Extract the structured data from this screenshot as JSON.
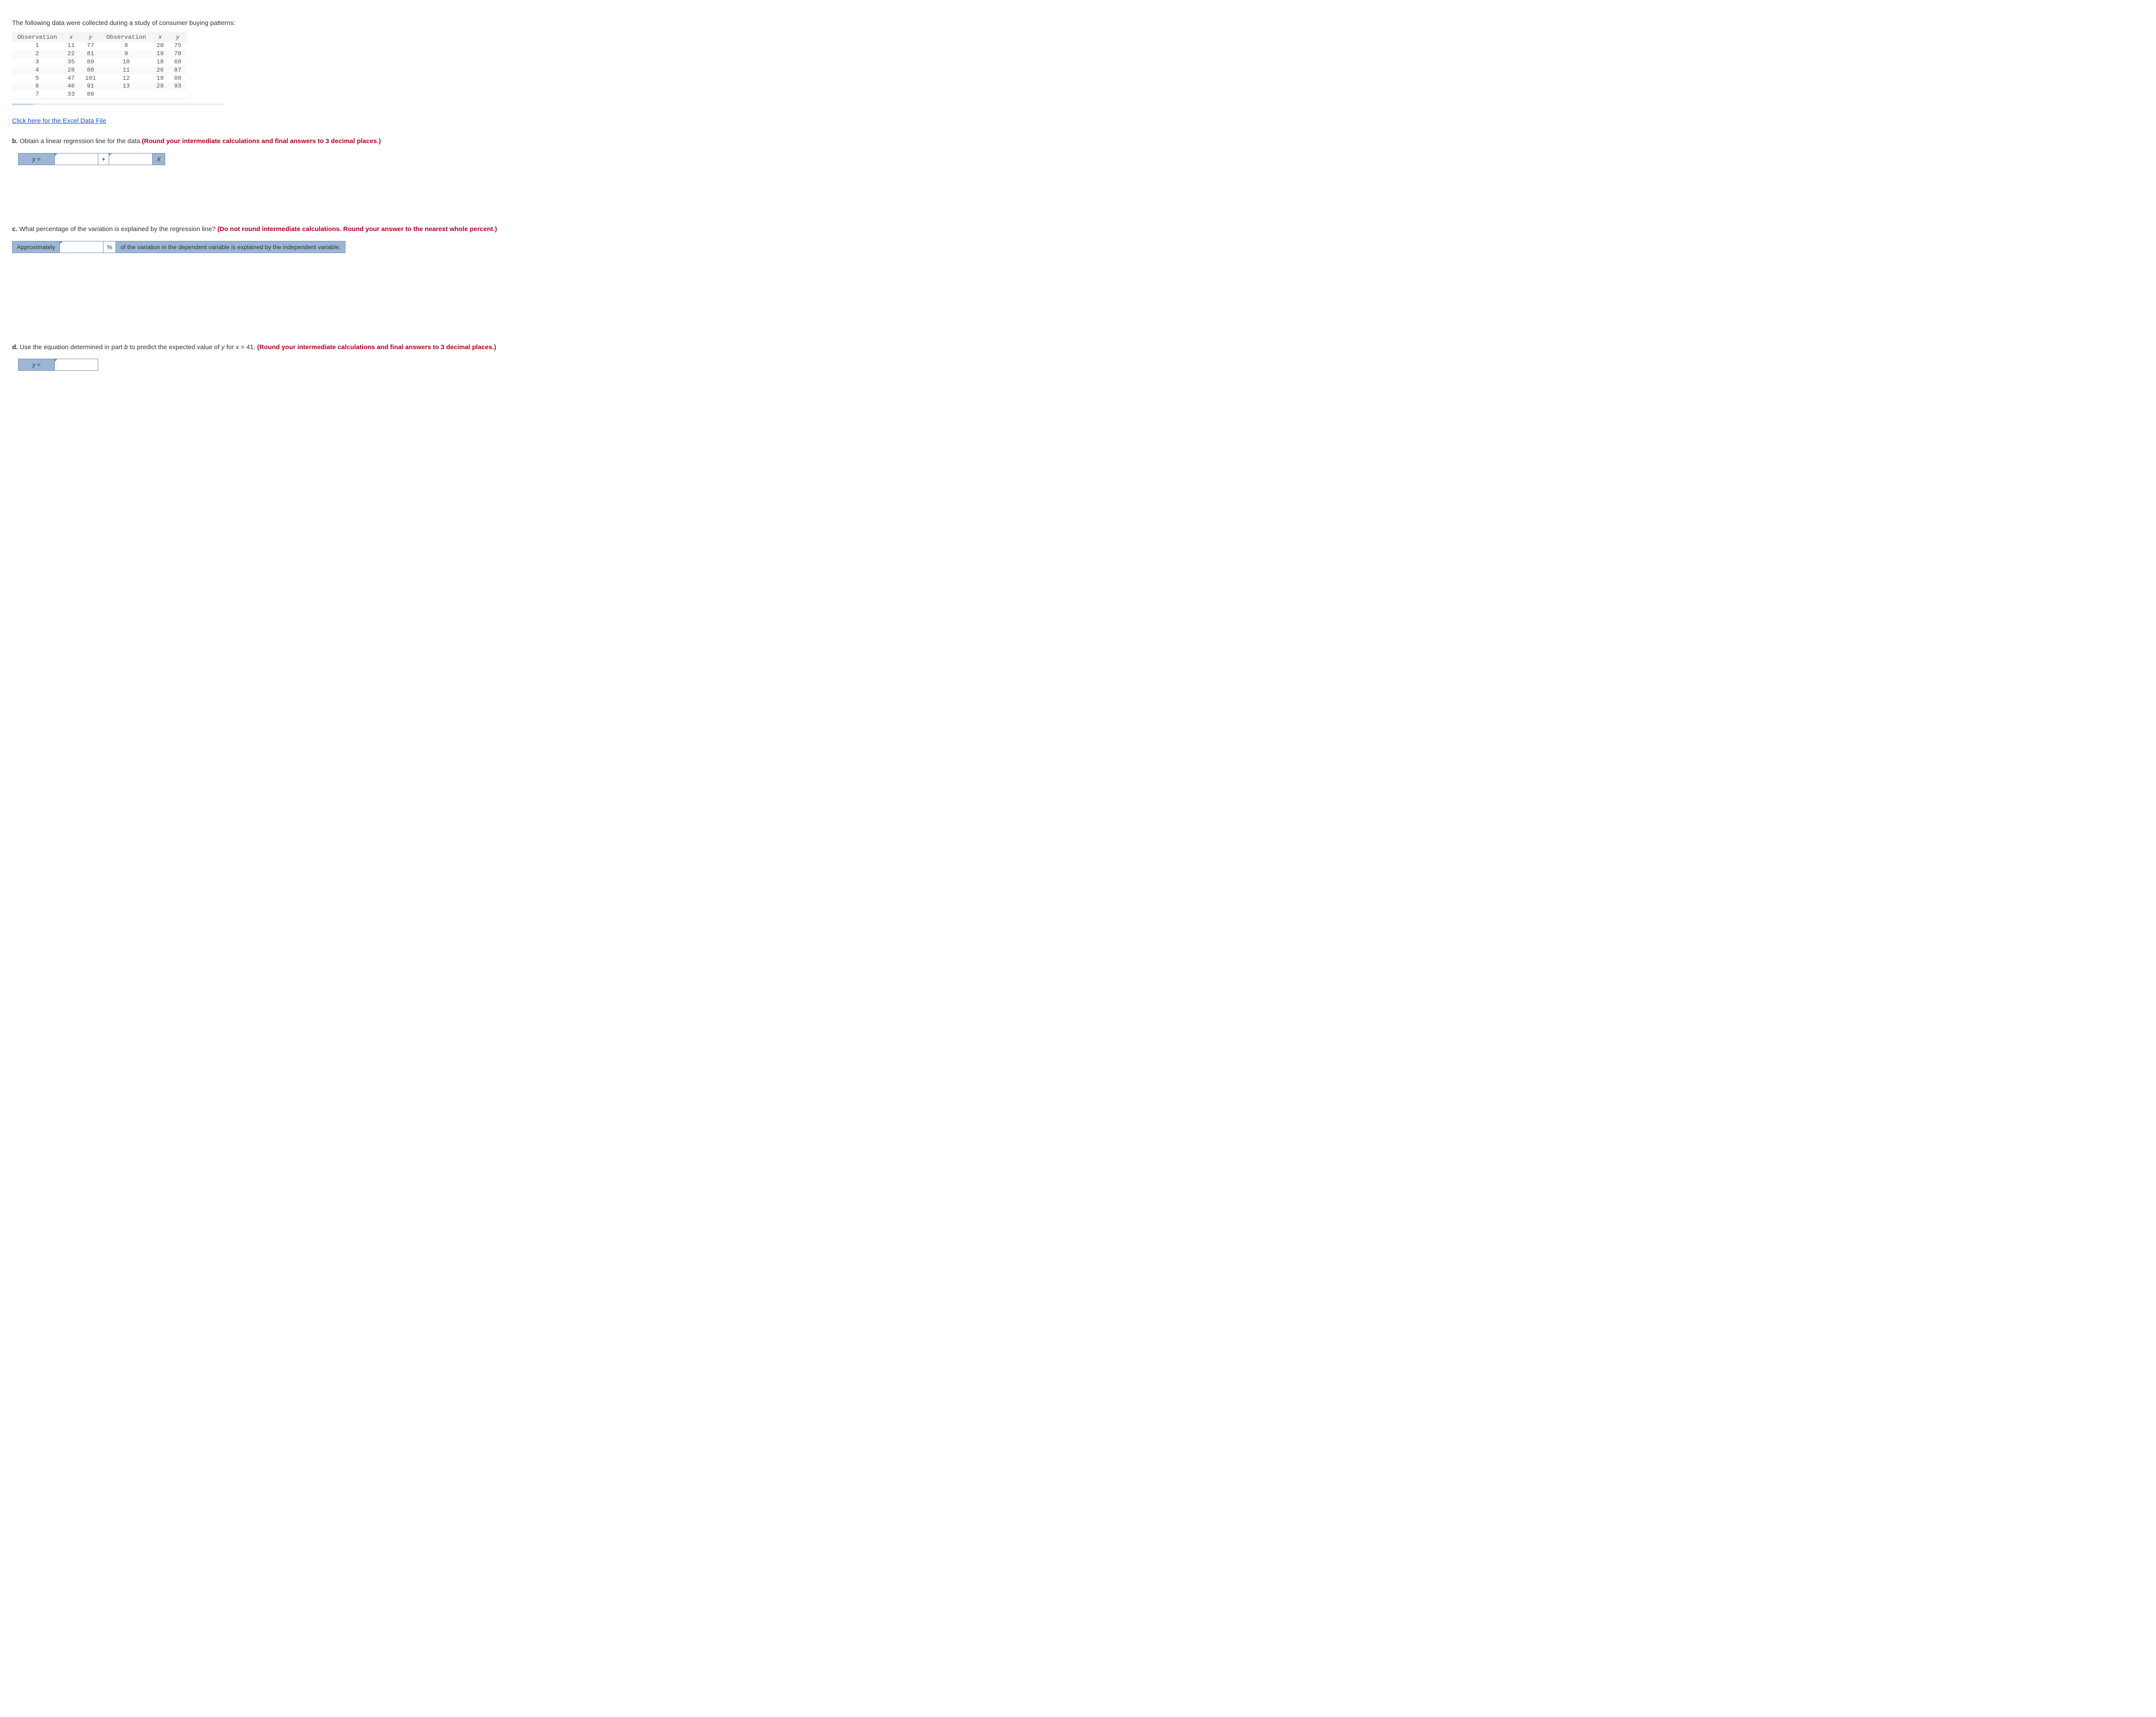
{
  "intro_text": "The following data were collected during a study of consumer buying patterns:",
  "table": {
    "headers": {
      "obs": "Observation",
      "x": "x",
      "y": "y"
    },
    "left": [
      {
        "obs": "1",
        "x": "11",
        "y": "77"
      },
      {
        "obs": "2",
        "x": "22",
        "y": "81"
      },
      {
        "obs": "3",
        "x": "35",
        "y": "89"
      },
      {
        "obs": "4",
        "x": "28",
        "y": "80"
      },
      {
        "obs": "5",
        "x": "47",
        "y": "101"
      },
      {
        "obs": "6",
        "x": "46",
        "y": "91"
      },
      {
        "obs": "7",
        "x": "33",
        "y": "86"
      }
    ],
    "right": [
      {
        "obs": "8",
        "x": "20",
        "y": "75"
      },
      {
        "obs": "9",
        "x": "19",
        "y": "70"
      },
      {
        "obs": "10",
        "x": "18",
        "y": "68"
      },
      {
        "obs": "11",
        "x": "26",
        "y": "87"
      },
      {
        "obs": "12",
        "x": "19",
        "y": "88"
      },
      {
        "obs": "13",
        "x": "28",
        "y": "93"
      }
    ]
  },
  "excel_link_text": "Click here for the Excel Data File",
  "part_b": {
    "label": "b.",
    "text": "Obtain a linear regression line for the data.",
    "bold": "(Round your intermediate calculations and final answers to 3 decimal places.)",
    "y_label": "y =",
    "plus": "+",
    "x_label": "X",
    "input1": "",
    "input2": ""
  },
  "part_c": {
    "label": "c.",
    "text": "What percentage of the variation is explained by the regression line? ",
    "bold": "(Do not round intermediate calculations. Round your answer to the nearest whole percent.)",
    "approx_label": "Approximately",
    "input": "",
    "pct": "%",
    "trail_text": "of the variation in the dependent variable is explained by the independent variable."
  },
  "part_d": {
    "label": "d.",
    "text_before": "Use the equation determined in part ",
    "b_ital": "b",
    "text_mid": " to predict the expected value of ",
    "y_ital": "y",
    "text_mid2": " for ",
    "x_ital": "x",
    "text_after": " = 41. ",
    "bold": "(Round your intermediate calculations and final answers to 3 decimal places.)",
    "y_label": "y =",
    "input": ""
  }
}
